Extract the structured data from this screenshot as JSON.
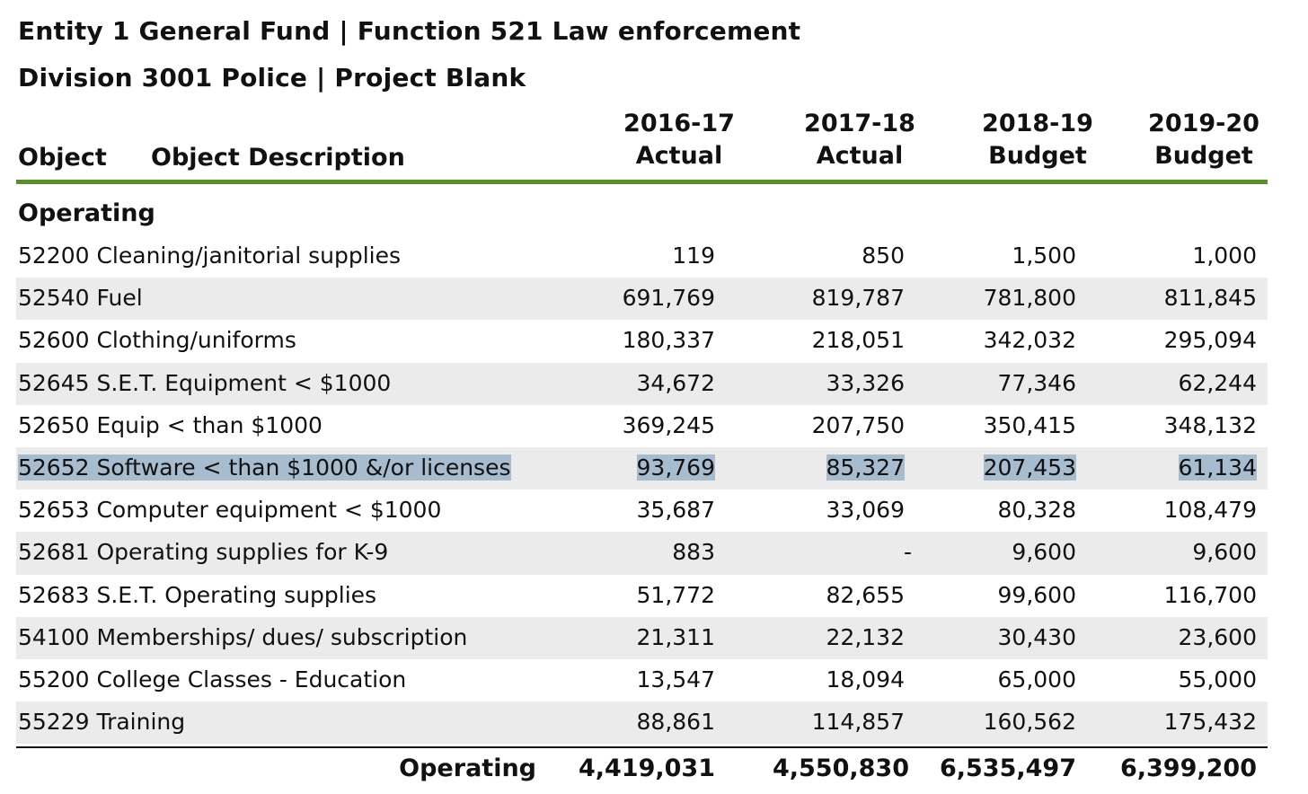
{
  "header": {
    "line1": "Entity 1 General Fund | Function 521 Law enforcement",
    "line2": "Division 3001 Police | Project Blank"
  },
  "columns": {
    "object": "Object",
    "description": "Object Description",
    "years": [
      {
        "year": "2016-17",
        "type": "Actual"
      },
      {
        "year": "2017-18",
        "type": "Actual"
      },
      {
        "year": "2018-19",
        "type": "Budget"
      },
      {
        "year": "2019-20",
        "type": "Budget"
      }
    ]
  },
  "section": "Operating",
  "rows": [
    {
      "label": "52200 Cleaning/janitorial supplies",
      "values": [
        "119",
        "850",
        "1,500",
        "1,000"
      ]
    },
    {
      "label": "52540 Fuel",
      "values": [
        "691,769",
        "819,787",
        "781,800",
        "811,845"
      ]
    },
    {
      "label": "52600 Clothing/uniforms",
      "values": [
        "180,337",
        "218,051",
        "342,032",
        "295,094"
      ]
    },
    {
      "label": "52645 S.E.T. Equipment < $1000",
      "values": [
        "34,672",
        "33,326",
        "77,346",
        "62,244"
      ]
    },
    {
      "label": "52650 Equip < than $1000",
      "values": [
        "369,245",
        "207,750",
        "350,415",
        "348,132"
      ]
    },
    {
      "label": "52652 Software < than $1000 &/or licenses",
      "values": [
        "93,769",
        "85,327",
        "207,453",
        "61,134"
      ]
    },
    {
      "label": "52653 Computer equipment < $1000",
      "values": [
        "35,687",
        "33,069",
        "80,328",
        "108,479"
      ]
    },
    {
      "label": "52681 Operating supplies for K-9",
      "values": [
        "883",
        "-",
        "9,600",
        "9,600"
      ]
    },
    {
      "label": "52683 S.E.T. Operating supplies",
      "values": [
        "51,772",
        "82,655",
        "99,600",
        "116,700"
      ]
    },
    {
      "label": "54100 Memberships/ dues/ subscription",
      "values": [
        "21,311",
        "22,132",
        "30,430",
        "23,600"
      ]
    },
    {
      "label": "55200 College Classes - Education",
      "values": [
        "13,547",
        "18,094",
        "65,000",
        "55,000"
      ]
    },
    {
      "label": "55229 Training",
      "values": [
        "88,861",
        "114,857",
        "160,562",
        "175,432"
      ]
    }
  ],
  "total": {
    "label": "Operating",
    "values": [
      "4,419,031",
      "4,550,830",
      "6,535,497",
      "6,399,200"
    ]
  },
  "colors": {
    "rule": "#5a8f2e",
    "shade": "#ebebeb",
    "selection": "#a8bcd0"
  }
}
